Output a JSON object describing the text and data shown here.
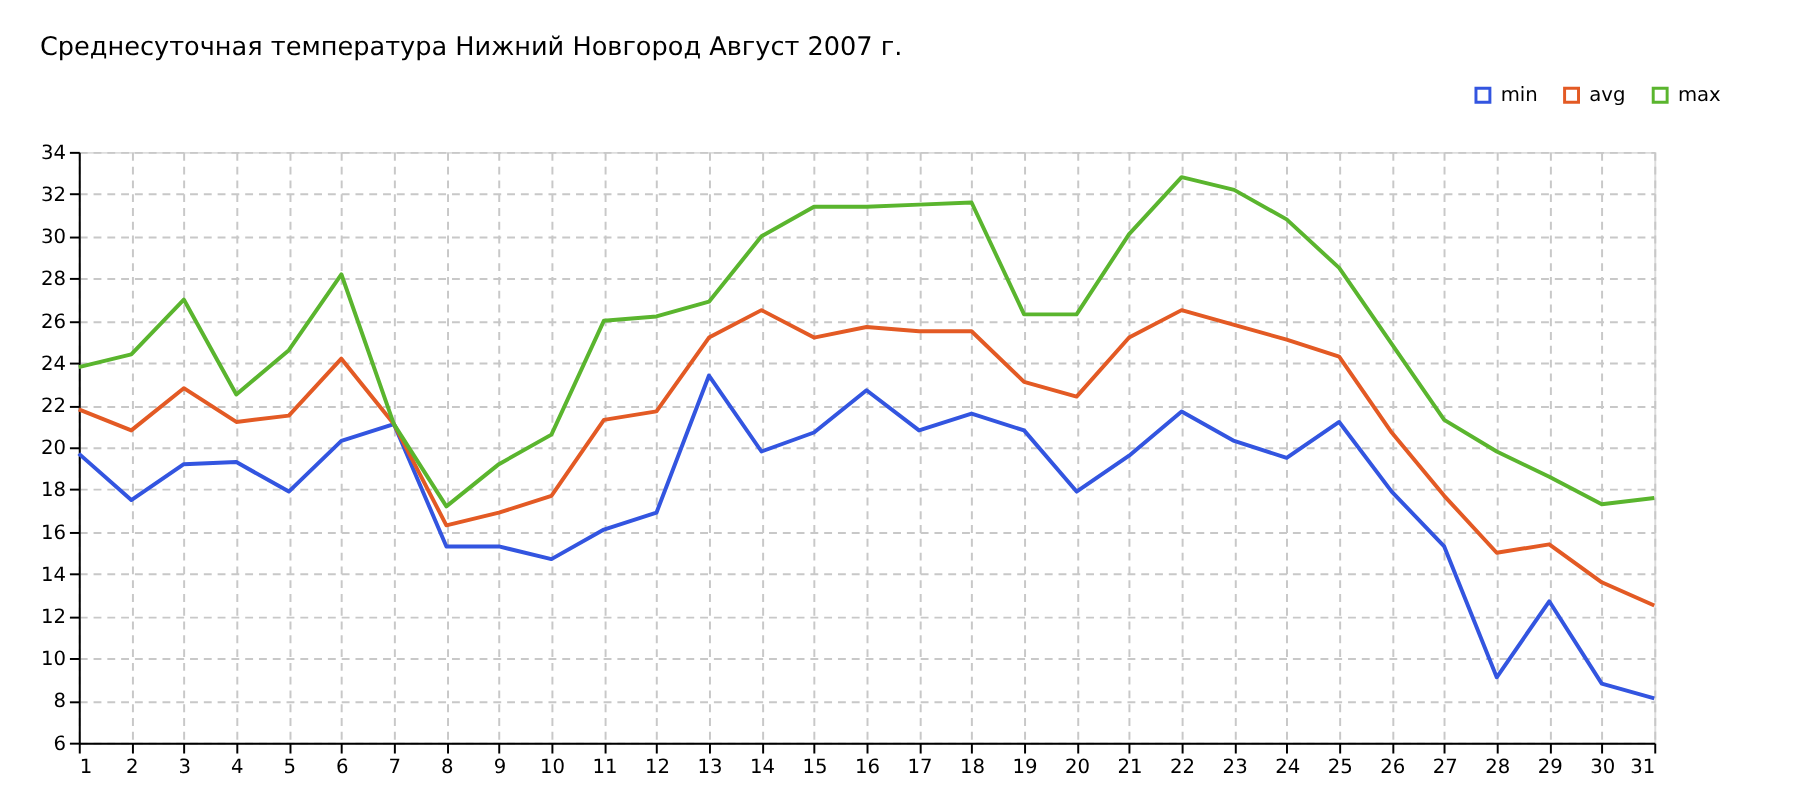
{
  "chart_data": {
    "type": "line",
    "title": "Среднесуточная температура Нижний Новгород  Август 2007 г.",
    "x": [
      1,
      2,
      3,
      4,
      5,
      6,
      7,
      8,
      9,
      10,
      11,
      12,
      13,
      14,
      15,
      16,
      17,
      18,
      19,
      20,
      21,
      22,
      23,
      24,
      25,
      26,
      27,
      28,
      29,
      30,
      31
    ],
    "series": [
      {
        "name": "min",
        "color": "#3355e0",
        "values": [
          19.7,
          17.5,
          19.2,
          19.3,
          17.9,
          20.3,
          21.1,
          15.3,
          15.3,
          14.7,
          16.1,
          16.9,
          23.4,
          19.8,
          20.7,
          22.7,
          20.8,
          21.6,
          20.8,
          17.9,
          19.6,
          21.7,
          20.3,
          19.5,
          21.2,
          17.9,
          15.3,
          9.1,
          12.7,
          8.8,
          8.1
        ]
      },
      {
        "name": "avg",
        "color": "#e35a24",
        "values": [
          21.8,
          20.8,
          22.8,
          21.2,
          21.5,
          24.2,
          21.1,
          16.3,
          16.9,
          17.7,
          21.3,
          21.7,
          25.2,
          26.5,
          25.2,
          25.7,
          25.5,
          25.5,
          23.1,
          22.4,
          25.2,
          26.5,
          25.8,
          25.1,
          24.3,
          20.7,
          17.7,
          15.0,
          15.4,
          13.6,
          12.5
        ]
      },
      {
        "name": "max",
        "color": "#5ab52e",
        "values": [
          23.8,
          24.4,
          27.0,
          22.5,
          24.6,
          28.2,
          21.1,
          17.2,
          19.2,
          20.6,
          26.0,
          26.2,
          26.9,
          30.0,
          31.4,
          31.4,
          31.5,
          31.6,
          26.3,
          26.3,
          30.1,
          32.8,
          32.2,
          30.8,
          28.5,
          24.9,
          21.3,
          19.8,
          18.6,
          17.3,
          17.6
        ]
      }
    ],
    "xlim": [
      1,
      31
    ],
    "xticks": [
      1,
      2,
      3,
      4,
      5,
      6,
      7,
      8,
      9,
      10,
      11,
      12,
      13,
      14,
      15,
      16,
      17,
      18,
      19,
      20,
      21,
      22,
      23,
      24,
      25,
      26,
      27,
      28,
      29,
      30,
      31
    ],
    "ylim": [
      6,
      34
    ],
    "yticks": [
      6,
      8,
      10,
      12,
      14,
      16,
      18,
      20,
      22,
      24,
      26,
      28,
      30,
      32,
      34
    ],
    "grid": true,
    "legend": "top right",
    "marker": "none",
    "line_style": "solid"
  }
}
